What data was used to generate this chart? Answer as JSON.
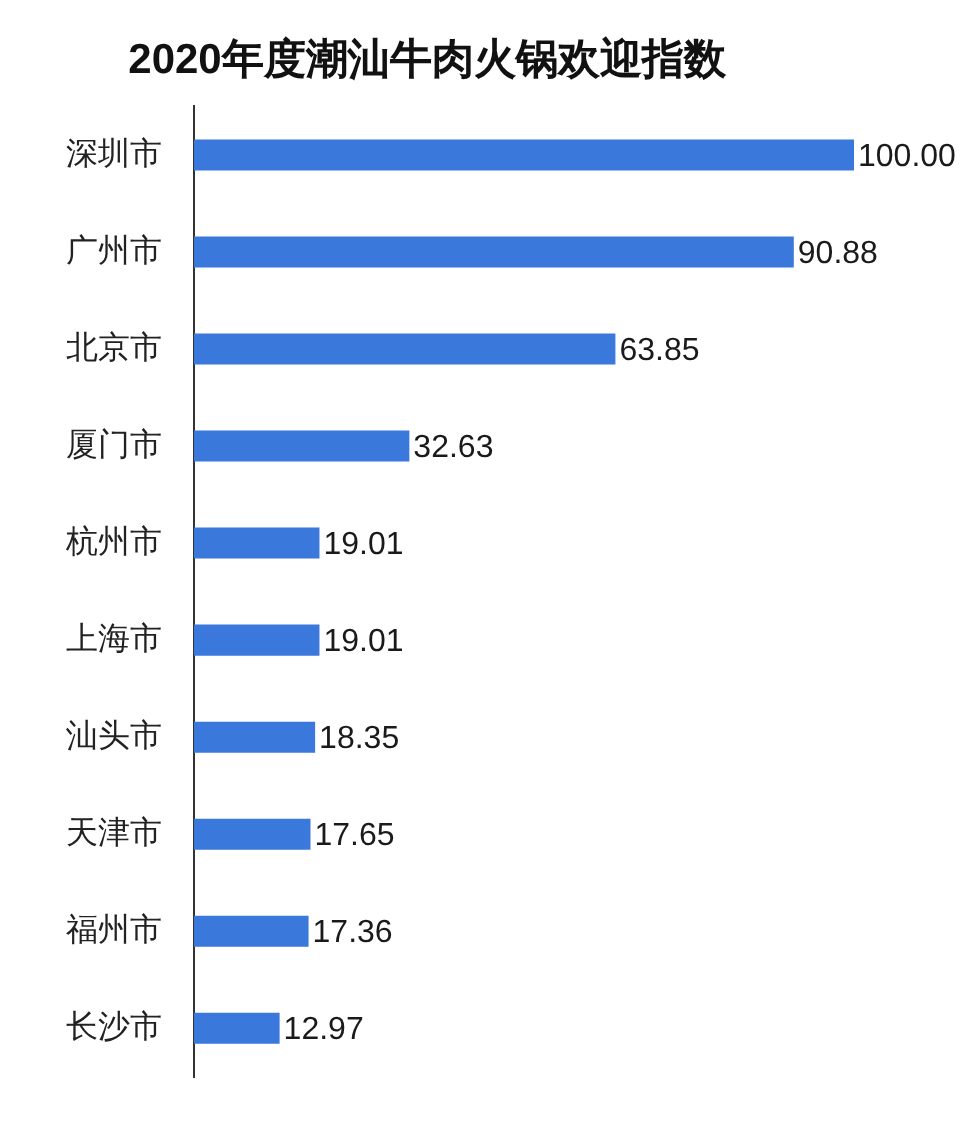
{
  "chart_data": {
    "type": "bar",
    "orientation": "horizontal",
    "title": "2020年度潮汕牛肉火锅欢迎指数",
    "categories": [
      "深圳市",
      "广州市",
      "北京市",
      "厦门市",
      "杭州市",
      "上海市",
      "汕头市",
      "天津市",
      "福州市",
      "长沙市"
    ],
    "values": [
      100,
      90.88,
      63.85,
      32.63,
      19.01,
      19.01,
      18.35,
      17.65,
      17.36,
      12.97
    ],
    "value_labels": [
      "100.00",
      "90.88",
      "63.85",
      "32.63",
      "19.01",
      "19.01",
      "18.35",
      "17.65",
      "17.36",
      "12.97"
    ],
    "color": "#3a78dc",
    "tick_labels": "y",
    "grid": false
  }
}
